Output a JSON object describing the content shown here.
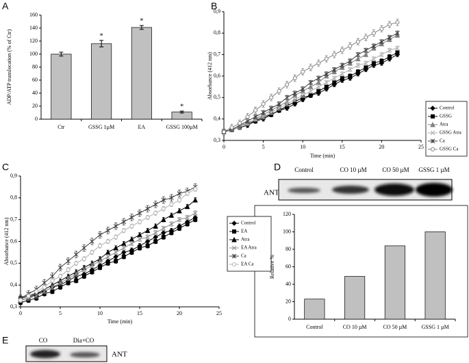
{
  "panels": [
    "A",
    "B",
    "C",
    "D",
    "E"
  ],
  "blot_d": {
    "lanes": [
      "Control",
      "CO 10 µM",
      "CO 50 µM",
      "GSSG 1 µM"
    ],
    "label": "ANT"
  },
  "blot_e": {
    "lanes": [
      "CO",
      "Dia+CO"
    ],
    "label": "ANT"
  },
  "chart_data": [
    {
      "type": "bar",
      "y_label": "ADP/ATP translocation (% of Ctr)",
      "categories": [
        "Ctr",
        "GSSG 1µM",
        "EA",
        "GSSG 100µM"
      ],
      "values": [
        100,
        116,
        141,
        11
      ],
      "errors": [
        3,
        5,
        3,
        1.5
      ],
      "significance": [
        null,
        "*",
        "*",
        "*"
      ],
      "color": "#c0c0c0",
      "ylim": [
        0,
        160
      ],
      "yticks": [
        0,
        20,
        40,
        60,
        80,
        100,
        120,
        140,
        160
      ]
    },
    {
      "type": "line",
      "x_label": "Time (min)",
      "y_label": "Absorbance (412 nm)",
      "x": [
        0,
        1,
        2,
        3,
        4,
        5,
        6,
        7,
        8,
        9,
        10,
        11,
        12,
        13,
        14,
        15,
        16,
        17,
        18,
        19,
        20,
        21,
        22
      ],
      "xlim": [
        0,
        25
      ],
      "xticks": [
        0,
        5,
        10,
        15,
        20,
        25
      ],
      "ylim": [
        0.3,
        0.9
      ],
      "yticks": [
        {
          "value": 0.3,
          "label": "0,3"
        },
        {
          "value": 0.4,
          "label": "0,4"
        },
        {
          "value": 0.5,
          "label": "0,5"
        },
        {
          "value": 0.6,
          "label": "0,6"
        },
        {
          "value": 0.7,
          "label": "0,7"
        },
        {
          "value": 0.8,
          "label": "0,8"
        },
        {
          "value": 0.9,
          "label": "0,9"
        }
      ],
      "series": [
        {
          "name": "Control",
          "color": "#000000",
          "marker": "diamond",
          "error": 0.01,
          "values": [
            0.34,
            0.35,
            0.36,
            0.37,
            0.39,
            0.4,
            0.42,
            0.44,
            0.45,
            0.47,
            0.49,
            0.51,
            0.52,
            0.54,
            0.56,
            0.58,
            0.59,
            0.61,
            0.63,
            0.65,
            0.66,
            0.68,
            0.7
          ]
        },
        {
          "name": "GSSG",
          "color": "#000000",
          "marker": "square",
          "error": 0.01,
          "values": [
            0.34,
            0.35,
            0.36,
            0.38,
            0.39,
            0.41,
            0.42,
            0.44,
            0.46,
            0.48,
            0.5,
            0.51,
            0.53,
            0.55,
            0.57,
            0.59,
            0.6,
            0.62,
            0.64,
            0.66,
            0.67,
            0.69,
            0.71
          ]
        },
        {
          "name": "Atra",
          "color": "#808080",
          "marker": "triangle",
          "error": 0.01,
          "values": [
            0.34,
            0.35,
            0.37,
            0.38,
            0.4,
            0.42,
            0.44,
            0.46,
            0.48,
            0.51,
            0.53,
            0.55,
            0.57,
            0.6,
            0.62,
            0.64,
            0.66,
            0.68,
            0.7,
            0.73,
            0.75,
            0.77,
            0.79
          ]
        },
        {
          "name": "GSSG Atra",
          "color": "#b0b0b0",
          "marker": "x",
          "error": 0.01,
          "values": [
            0.34,
            0.35,
            0.36,
            0.38,
            0.4,
            0.41,
            0.43,
            0.45,
            0.47,
            0.49,
            0.51,
            0.53,
            0.55,
            0.57,
            0.59,
            0.61,
            0.63,
            0.65,
            0.66,
            0.68,
            0.7,
            0.72,
            0.73
          ]
        },
        {
          "name": "Ca",
          "color": "#404040",
          "marker": "star",
          "error": 0.01,
          "values": [
            0.34,
            0.35,
            0.37,
            0.39,
            0.41,
            0.43,
            0.45,
            0.47,
            0.5,
            0.52,
            0.54,
            0.57,
            0.59,
            0.61,
            0.63,
            0.65,
            0.67,
            0.7,
            0.72,
            0.74,
            0.76,
            0.78,
            0.8
          ]
        },
        {
          "name": "GSSG Ca",
          "color": "#808080",
          "marker": "circle",
          "error": 0.015,
          "values": [
            0.34,
            0.36,
            0.38,
            0.41,
            0.44,
            0.47,
            0.5,
            0.53,
            0.56,
            0.59,
            0.62,
            0.64,
            0.66,
            0.68,
            0.7,
            0.72,
            0.74,
            0.76,
            0.78,
            0.8,
            0.82,
            0.84,
            0.85
          ]
        }
      ]
    },
    {
      "type": "line",
      "x_label": "Time (min)",
      "y_label": "Absorbance (412 nm)",
      "x": [
        0,
        1,
        2,
        3,
        4,
        5,
        6,
        7,
        8,
        9,
        10,
        11,
        12,
        13,
        14,
        15,
        16,
        17,
        18,
        19,
        20,
        21,
        22
      ],
      "xlim": [
        0,
        25
      ],
      "xticks": [
        0,
        5,
        10,
        15,
        20,
        25
      ],
      "ylim": [
        0.3,
        0.9
      ],
      "yticks": [
        {
          "value": 0.3,
          "label": "0,3"
        },
        {
          "value": 0.4,
          "label": "0,4"
        },
        {
          "value": 0.5,
          "label": "0,5"
        },
        {
          "value": 0.6,
          "label": "0,6"
        },
        {
          "value": 0.7,
          "label": "0,7"
        },
        {
          "value": 0.8,
          "label": "0,8"
        },
        {
          "value": 0.9,
          "label": "0,9"
        }
      ],
      "series": [
        {
          "name": "Control",
          "color": "#000000",
          "marker": "diamond",
          "error": 0.01,
          "values": [
            0.34,
            0.35,
            0.36,
            0.37,
            0.39,
            0.4,
            0.42,
            0.44,
            0.45,
            0.47,
            0.49,
            0.51,
            0.53,
            0.55,
            0.56,
            0.58,
            0.6,
            0.62,
            0.64,
            0.65,
            0.67,
            0.69,
            0.71
          ]
        },
        {
          "name": "EA",
          "color": "#000000",
          "marker": "square",
          "error": 0.01,
          "values": [
            0.32,
            0.33,
            0.34,
            0.36,
            0.37,
            0.39,
            0.41,
            0.42,
            0.44,
            0.46,
            0.48,
            0.5,
            0.51,
            0.53,
            0.55,
            0.57,
            0.58,
            0.6,
            0.62,
            0.64,
            0.66,
            0.68,
            0.7
          ]
        },
        {
          "name": "Atra",
          "color": "#000000",
          "marker": "triangle",
          "error": 0.01,
          "values": [
            0.33,
            0.34,
            0.36,
            0.38,
            0.4,
            0.42,
            0.44,
            0.46,
            0.48,
            0.5,
            0.52,
            0.55,
            0.57,
            0.59,
            0.61,
            0.63,
            0.65,
            0.67,
            0.7,
            0.72,
            0.74,
            0.76,
            0.79
          ]
        },
        {
          "name": "EA Atra",
          "color": "#909090",
          "marker": "x",
          "error": 0.01,
          "values": [
            0.33,
            0.34,
            0.35,
            0.37,
            0.39,
            0.41,
            0.43,
            0.45,
            0.47,
            0.49,
            0.51,
            0.53,
            0.55,
            0.57,
            0.59,
            0.61,
            0.62,
            0.64,
            0.66,
            0.68,
            0.7,
            0.71,
            0.73
          ]
        },
        {
          "name": "Ca",
          "color": "#404040",
          "marker": "star",
          "error": 0.015,
          "values": [
            0.34,
            0.36,
            0.38,
            0.41,
            0.44,
            0.48,
            0.51,
            0.54,
            0.57,
            0.6,
            0.63,
            0.65,
            0.67,
            0.69,
            0.71,
            0.73,
            0.75,
            0.77,
            0.79,
            0.8,
            0.82,
            0.83,
            0.85
          ]
        },
        {
          "name": "EA Ca",
          "color": "#b0b0b0",
          "marker": "circle",
          "error": 0.01,
          "values": [
            0.33,
            0.35,
            0.37,
            0.39,
            0.42,
            0.44,
            0.47,
            0.5,
            0.52,
            0.55,
            0.58,
            0.6,
            0.62,
            0.65,
            0.67,
            0.69,
            0.71,
            0.73,
            0.75,
            0.77,
            0.79,
            0.82,
            0.84
          ]
        }
      ]
    },
    {
      "type": "bar",
      "y_label": "Relative %",
      "categories": [
        "Control",
        "CO 10 µM",
        "CO 50 µM",
        "GSSG 1 µM"
      ],
      "values": [
        23,
        49,
        84,
        100
      ],
      "color": "#c0c0c0",
      "ylim": [
        0,
        120
      ],
      "yticks": [
        0,
        20,
        40,
        60,
        80,
        100,
        120
      ]
    }
  ]
}
